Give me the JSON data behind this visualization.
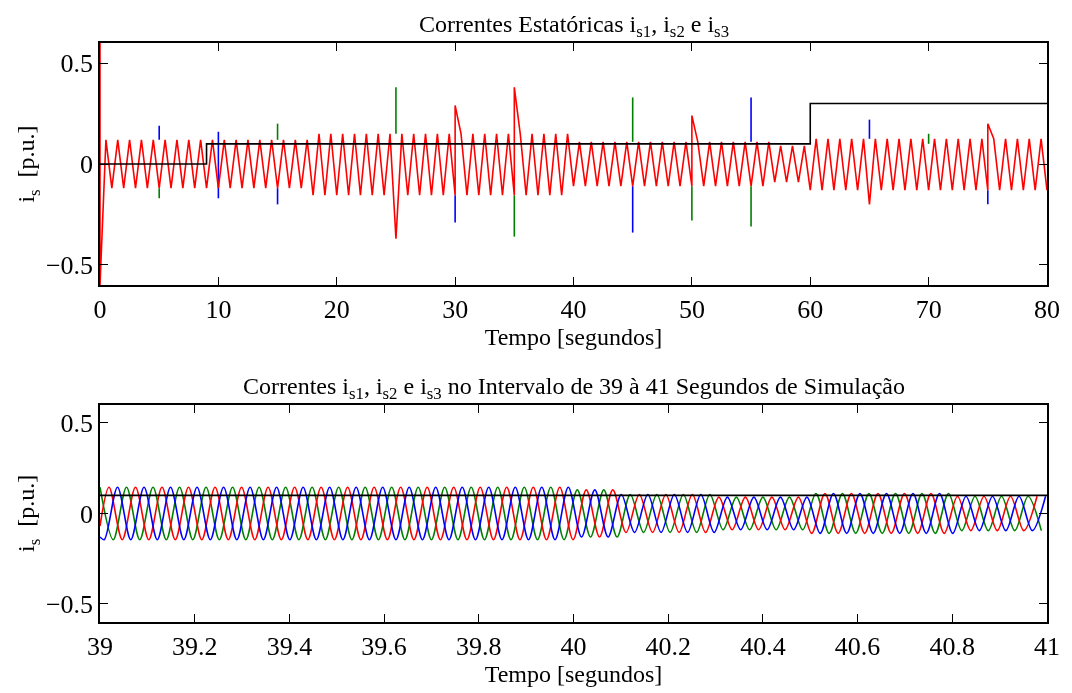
{
  "chart_data": [
    {
      "type": "line",
      "title": "Correntes Estatóricas i$_{s1}$, i$_{s2}$ e i$_{s3}$",
      "xlabel": "Tempo [segundos]",
      "ylabel": "i$_{s}$  [p.u.]",
      "xlim": [
        0,
        80
      ],
      "xticks": [
        0,
        10,
        20,
        30,
        40,
        50,
        60,
        70,
        80
      ],
      "ylim": [
        -0.6,
        0.6
      ],
      "yticks": [
        {
          "value": -0.5,
          "label": "−0.5"
        },
        0,
        0.5
      ],
      "marker": "none",
      "line_style": "solid",
      "series": [
        {
          "color": "#0000ff",
          "x": [
            5,
            5
          ],
          "values": [
            0.12,
            0.19
          ]
        },
        {
          "color": "#0000ff",
          "x": [
            10,
            10
          ],
          "values": [
            -0.17,
            0.16
          ]
        },
        {
          "color": "#0000ff",
          "x": [
            15,
            15
          ],
          "values": [
            -0.2,
            -0.12
          ]
        },
        {
          "color": "#0000ff",
          "x": [
            30,
            30
          ],
          "values": [
            -0.29,
            -0.155
          ]
        },
        {
          "color": "#0000ff",
          "x": [
            45,
            45
          ],
          "values": [
            -0.34,
            -0.11
          ]
        },
        {
          "color": "#0000ff",
          "x": [
            55,
            55
          ],
          "values": [
            0.11,
            0.33
          ]
        },
        {
          "color": "#0000ff",
          "x": [
            65,
            65
          ],
          "values": [
            0.125,
            0.22
          ]
        },
        {
          "color": "#0000ff",
          "x": [
            75,
            75
          ],
          "values": [
            -0.2,
            -0.13
          ]
        },
        {
          "color": "#008000",
          "x": [
            5,
            5
          ],
          "values": [
            -0.17,
            -0.12
          ]
        },
        {
          "color": "#008000",
          "x": [
            15,
            15
          ],
          "values": [
            0.12,
            0.2
          ]
        },
        {
          "color": "#008000",
          "x": [
            25,
            25
          ],
          "values": [
            0.15,
            0.38
          ]
        },
        {
          "color": "#008000",
          "x": [
            35,
            35
          ],
          "values": [
            -0.36,
            -0.155
          ]
        },
        {
          "color": "#008000",
          "x": [
            45,
            45
          ],
          "values": [
            0.11,
            0.33
          ]
        },
        {
          "color": "#008000",
          "x": [
            50,
            50
          ],
          "values": [
            -0.28,
            -0.11
          ]
        },
        {
          "color": "#008000",
          "x": [
            55,
            55
          ],
          "values": [
            -0.31,
            -0.11
          ]
        },
        {
          "color": "#008000",
          "x": [
            70,
            70
          ],
          "values": [
            0.1,
            0.15
          ]
        },
        {
          "color": "#ff0000",
          "x": [
            0,
            0,
            0.5,
            1,
            1.5,
            2,
            2.5,
            3,
            3.5,
            4,
            4.5,
            5,
            5.5,
            6,
            6.5,
            7,
            7.5,
            8,
            8.5,
            9,
            9.5,
            10,
            10.5,
            11,
            11.5,
            12,
            12.5,
            13,
            13.5,
            14,
            14.5,
            15,
            15.5,
            16,
            16.5,
            17,
            17.5,
            18,
            18.5,
            19,
            19.5,
            20,
            20.5,
            21,
            21.5,
            22,
            22.5,
            23,
            23.5,
            24,
            24.5,
            25,
            25.5,
            26,
            26.5,
            27,
            27.5,
            28,
            28.5,
            29,
            29.5,
            30,
            30,
            30.5,
            31,
            31.5,
            32,
            32.5,
            33,
            33.5,
            34,
            34.5,
            35,
            35,
            35.5,
            36,
            36.5,
            37,
            37.5,
            38,
            38.5,
            39,
            39.5,
            40,
            40.5,
            41,
            41.5,
            42,
            42.5,
            43,
            43.5,
            44,
            44.5,
            45,
            45.5,
            46,
            46.5,
            47,
            47.5,
            48,
            48.5,
            49,
            49.5,
            50,
            50,
            50.5,
            51,
            51.5,
            52,
            52.5,
            53,
            53.5,
            54,
            54.5,
            55,
            55.5,
            56,
            56.5,
            57,
            57.5,
            58,
            58.5,
            59,
            59.5,
            60,
            60.5,
            61,
            61.5,
            62,
            62.5,
            63,
            63.5,
            64,
            64.5,
            65,
            65.5,
            66,
            66.5,
            67,
            67.5,
            68,
            68.5,
            69,
            69.5,
            70,
            70.5,
            71,
            71.5,
            72,
            72.5,
            73,
            73.5,
            74,
            74.5,
            75,
            75,
            75.5,
            76,
            76.5,
            77,
            77.5,
            78,
            78.5,
            79,
            79.5,
            80
          ],
          "values": [
            0.6,
            -0.6,
            0.12,
            -0.12,
            0.12,
            -0.12,
            0.12,
            -0.12,
            0.12,
            -0.12,
            0.12,
            -0.12,
            0.12,
            -0.12,
            0.12,
            -0.12,
            0.12,
            -0.12,
            0.12,
            -0.12,
            0.12,
            -0.12,
            0.12,
            -0.12,
            0.12,
            -0.12,
            0.12,
            -0.12,
            0.12,
            -0.12,
            0.12,
            -0.12,
            0.12,
            -0.12,
            0.12,
            -0.12,
            0.12,
            -0.155,
            0.15,
            -0.155,
            0.15,
            -0.155,
            0.15,
            -0.155,
            0.15,
            -0.155,
            0.15,
            -0.155,
            0.15,
            -0.155,
            0.15,
            -0.37,
            0.15,
            -0.155,
            0.15,
            -0.155,
            0.15,
            -0.155,
            0.15,
            -0.155,
            0.15,
            -0.155,
            0.29,
            0.15,
            -0.155,
            0.15,
            -0.155,
            0.15,
            -0.155,
            0.15,
            -0.155,
            0.15,
            -0.155,
            0.38,
            0.15,
            -0.155,
            0.15,
            -0.155,
            0.15,
            -0.155,
            0.15,
            -0.155,
            0.15,
            -0.11,
            0.11,
            -0.11,
            0.11,
            -0.11,
            0.11,
            -0.11,
            0.11,
            -0.11,
            0.11,
            -0.11,
            0.11,
            -0.11,
            0.11,
            -0.11,
            0.11,
            -0.11,
            0.11,
            -0.11,
            0.11,
            -0.11,
            0.24,
            0.11,
            -0.11,
            0.11,
            -0.11,
            0.11,
            -0.11,
            0.11,
            -0.11,
            0.11,
            -0.11,
            0.11,
            -0.11,
            0.11,
            -0.09,
            0.09,
            -0.09,
            0.09,
            -0.09,
            0.09,
            -0.13,
            0.125,
            -0.13,
            0.125,
            -0.13,
            0.125,
            -0.13,
            0.125,
            -0.13,
            0.125,
            -0.2,
            0.125,
            -0.13,
            0.125,
            -0.13,
            0.125,
            -0.13,
            0.125,
            -0.13,
            0.125,
            -0.13,
            0.125,
            -0.13,
            0.125,
            -0.13,
            0.125,
            -0.13,
            0.125,
            -0.13,
            0.125,
            -0.13,
            0.2,
            0.125,
            -0.13,
            0.125,
            -0.13,
            0.125,
            -0.13,
            0.125,
            -0.13,
            0.125,
            -0.13
          ]
        },
        {
          "type": "step",
          "color": "#000000",
          "x": [
            0,
            9,
            60,
            80
          ],
          "values": [
            0,
            0.1,
            0.3,
            0.3
          ]
        }
      ]
    },
    {
      "type": "line",
      "title": "Correntes i$_{s1}$, i$_{s2}$ e i$_{s3}$ no Intervalo de 39 à 41 Segundos de Simulação",
      "xlabel": "Tempo [segundos]",
      "ylabel": "i$_{s}$  [p.u.]",
      "xlim": [
        39,
        41
      ],
      "xticks": [
        39,
        39.2,
        39.4,
        39.6,
        39.8,
        40,
        40.2,
        40.4,
        40.6,
        40.8,
        41
      ],
      "ylim": [
        -0.6,
        0.6
      ],
      "yticks": [
        {
          "value": -0.5,
          "label": "−0.5"
        },
        0,
        0.5
      ],
      "marker": "none",
      "line_style": "solid",
      "series": [
        {
          "color": "#008000",
          "x": [
            39.0,
            39.028,
            39.056,
            39.084,
            39.112,
            39.14,
            39.168,
            39.196,
            39.224,
            39.252,
            39.28,
            39.308,
            39.336,
            39.364,
            39.392,
            39.42,
            39.448,
            39.476,
            39.504,
            39.532,
            39.56,
            39.588,
            39.616,
            39.644,
            39.672,
            39.7,
            39.728,
            39.756,
            39.784,
            39.812,
            39.84,
            39.868,
            39.896,
            39.924,
            39.952,
            39.98,
            40.008,
            40.036,
            40.064,
            40.092,
            40.12,
            40.148,
            40.176,
            40.204,
            40.232,
            40.26,
            40.288,
            40.316,
            40.344,
            40.372,
            40.4,
            40.428,
            40.456,
            40.484,
            40.512,
            40.54,
            40.568,
            40.596,
            40.624,
            40.652,
            40.68,
            40.708,
            40.736,
            40.764,
            40.792,
            40.82,
            40.848,
            40.876,
            40.904,
            40.932,
            40.96,
            40.988
          ],
          "values": [
            0.145,
            -0.145,
            0.145,
            -0.145,
            0.145,
            -0.145,
            0.145,
            -0.145,
            0.145,
            -0.145,
            0.145,
            -0.145,
            0.145,
            -0.145,
            0.145,
            -0.145,
            0.145,
            -0.145,
            0.145,
            -0.145,
            0.145,
            -0.145,
            0.145,
            -0.145,
            0.145,
            -0.145,
            0.145,
            -0.145,
            0.145,
            -0.145,
            0.145,
            -0.145,
            0.145,
            -0.145,
            0.145,
            -0.145,
            0.13,
            -0.13,
            0.13,
            -0.13,
            0.105,
            -0.105,
            0.105,
            -0.105,
            0.105,
            -0.105,
            0.105,
            -0.09,
            0.09,
            -0.09,
            0.09,
            -0.09,
            0.09,
            -0.09,
            0.11,
            -0.11,
            0.11,
            -0.11,
            0.11,
            -0.11,
            0.11,
            -0.11,
            0.11,
            -0.11,
            0.11,
            -0.095,
            0.095,
            -0.095,
            0.095,
            -0.095,
            0.095,
            -0.095
          ]
        },
        {
          "color": "#ff0000",
          "x": [
            39.0,
            39.019,
            39.047,
            39.075,
            39.103,
            39.131,
            39.159,
            39.187,
            39.215,
            39.243,
            39.271,
            39.299,
            39.327,
            39.355,
            39.383,
            39.411,
            39.439,
            39.467,
            39.495,
            39.523,
            39.551,
            39.579,
            39.607,
            39.635,
            39.663,
            39.691,
            39.719,
            39.747,
            39.775,
            39.803,
            39.831,
            39.859,
            39.887,
            39.915,
            39.943,
            39.971,
            39.999,
            40.027,
            40.055,
            40.083,
            40.111,
            40.139,
            40.167,
            40.195,
            40.223,
            40.251,
            40.279,
            40.307,
            40.335,
            40.363,
            40.391,
            40.419,
            40.447,
            40.475,
            40.503,
            40.531,
            40.559,
            40.587,
            40.615,
            40.643,
            40.671,
            40.699,
            40.727,
            40.755,
            40.783,
            40.811,
            40.839,
            40.867,
            40.895,
            40.923,
            40.951,
            40.979
          ],
          "values": [
            -0.07,
            0.145,
            -0.145,
            0.145,
            -0.145,
            0.145,
            -0.145,
            0.145,
            -0.145,
            0.145,
            -0.145,
            0.145,
            -0.145,
            0.145,
            -0.145,
            0.145,
            -0.145,
            0.145,
            -0.145,
            0.145,
            -0.145,
            0.145,
            -0.145,
            0.145,
            -0.145,
            0.145,
            -0.145,
            0.145,
            -0.145,
            0.145,
            -0.145,
            0.145,
            -0.145,
            0.145,
            -0.145,
            0.145,
            -0.145,
            0.13,
            -0.13,
            0.13,
            -0.105,
            0.105,
            -0.105,
            0.105,
            -0.105,
            0.105,
            -0.105,
            0.09,
            -0.09,
            0.09,
            -0.09,
            0.09,
            -0.09,
            0.09,
            -0.11,
            0.11,
            -0.11,
            0.11,
            -0.11,
            0.11,
            -0.11,
            0.11,
            -0.11,
            0.11,
            -0.11,
            0.095,
            -0.095,
            0.095,
            -0.095,
            0.095,
            -0.095,
            0.095
          ]
        },
        {
          "color": "#0000ff",
          "x": [
            39.0,
            39.009,
            39.037,
            39.065,
            39.093,
            39.121,
            39.149,
            39.177,
            39.205,
            39.233,
            39.261,
            39.289,
            39.317,
            39.345,
            39.373,
            39.401,
            39.429,
            39.457,
            39.485,
            39.513,
            39.541,
            39.569,
            39.597,
            39.625,
            39.653,
            39.681,
            39.709,
            39.737,
            39.765,
            39.793,
            39.821,
            39.849,
            39.877,
            39.905,
            39.933,
            39.961,
            39.989,
            40.017,
            40.045,
            40.073,
            40.101,
            40.129,
            40.157,
            40.185,
            40.213,
            40.241,
            40.269,
            40.297,
            40.325,
            40.353,
            40.381,
            40.409,
            40.437,
            40.465,
            40.493,
            40.521,
            40.549,
            40.577,
            40.605,
            40.633,
            40.661,
            40.689,
            40.717,
            40.745,
            40.773,
            40.801,
            40.829,
            40.857,
            40.885,
            40.913,
            40.941,
            40.969,
            40.997
          ],
          "values": [
            -0.13,
            -0.145,
            0.145,
            -0.145,
            0.145,
            -0.145,
            0.145,
            -0.145,
            0.145,
            -0.145,
            0.145,
            -0.145,
            0.145,
            -0.145,
            0.145,
            -0.145,
            0.145,
            -0.145,
            0.145,
            -0.145,
            0.145,
            -0.145,
            0.145,
            -0.145,
            0.145,
            -0.145,
            0.145,
            -0.145,
            0.145,
            -0.145,
            0.145,
            -0.145,
            0.145,
            -0.145,
            0.145,
            -0.145,
            0.145,
            -0.13,
            0.13,
            -0.13,
            0.105,
            -0.105,
            0.105,
            -0.105,
            0.105,
            -0.105,
            0.105,
            -0.105,
            0.09,
            -0.09,
            0.09,
            -0.09,
            0.09,
            -0.09,
            0.09,
            -0.11,
            0.11,
            -0.11,
            0.11,
            -0.11,
            0.11,
            -0.11,
            0.11,
            -0.11,
            0.11,
            -0.11,
            0.095,
            -0.095,
            0.095,
            -0.095,
            0.095,
            -0.095,
            0.095
          ]
        },
        {
          "color": "#000000",
          "x": [
            39,
            41
          ],
          "values": [
            0.1,
            0.1
          ]
        }
      ]
    }
  ]
}
